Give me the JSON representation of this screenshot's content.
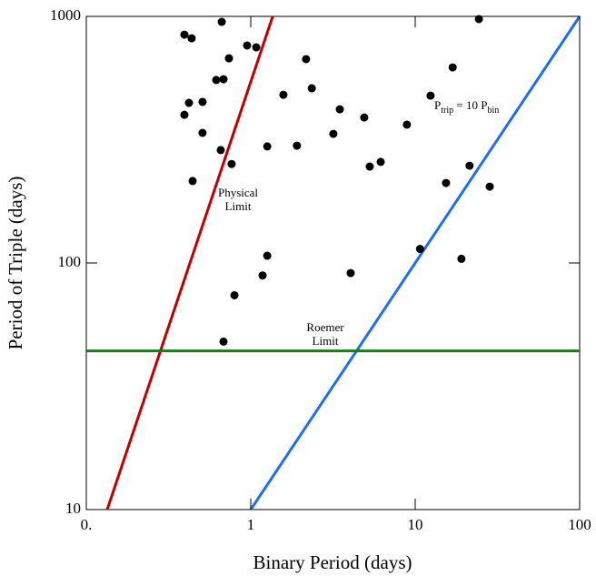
{
  "chart_data": {
    "type": "scatter",
    "x_label": "Binary Period (days)",
    "y_label": "Period of Triple (days)",
    "log_x": true,
    "log_y": true,
    "xlim": [
      0.1,
      100
    ],
    "ylim": [
      10,
      1000
    ],
    "xticks": [
      {
        "value": 0.1,
        "label": "0."
      },
      1,
      10,
      100
    ],
    "yticks": [
      10,
      100,
      1000
    ],
    "series": [
      {
        "color": "#000000",
        "x": [
          0.666,
          24.4,
          0.395,
          0.437,
          0.95,
          1.08,
          0.737,
          2.17,
          16.9,
          0.617,
          0.683,
          0.421,
          0.509,
          1.58,
          2.35,
          12.4,
          3.48,
          0.395,
          4.9,
          8.9,
          0.509,
          3.18,
          0.657,
          1.26,
          1.91,
          0.765,
          6.17,
          5.29,
          21.4,
          0.443,
          15.4,
          28.4,
          10.7,
          1.26,
          19.1,
          4.05,
          1.18,
          0.796,
          0.683
        ],
        "values": [
          950,
          975,
          843,
          815,
          762,
          749,
          676,
          671,
          621,
          552,
          556,
          446,
          450,
          481,
          511,
          477,
          420,
          399,
          389,
          364,
          337,
          334,
          287,
          297,
          299,
          252,
          257,
          246,
          248,
          215,
          211,
          204,
          114,
          107,
          104,
          91,
          89,
          74,
          48
        ]
      }
    ],
    "lines": [
      {
        "color": "#c00000",
        "x": [
          0.134,
          1.36
        ],
        "values": [
          10,
          1000
        ]
      },
      {
        "color": "#1f6fe8",
        "x": [
          1,
          100
        ],
        "values": [
          10,
          1000
        ]
      },
      {
        "color": "#1a7a1a",
        "x": [
          0.1,
          100
        ],
        "values": [
          44,
          44
        ]
      }
    ],
    "annotations": [
      {
        "lines": [
          "Physical",
          "Limit"
        ]
      },
      {
        "lines": [
          "Roemer",
          "Limit"
        ]
      },
      {
        "parts": [
          "P",
          "trip",
          " = 10 P",
          "bin"
        ]
      }
    ]
  }
}
